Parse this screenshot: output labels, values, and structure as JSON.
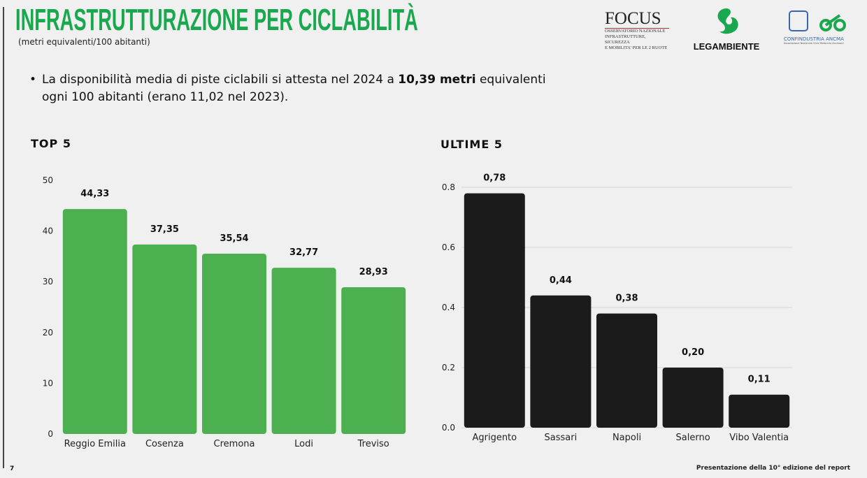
{
  "header": {
    "title": "INFRASTRUTTURAZIONE PER CICLABILITÀ",
    "subtitle": "(metri equivalenti/100 abitanti)"
  },
  "logos": {
    "focus": "FOCUS",
    "focus_sub": [
      "OSSERVATORIO NAZIONALE",
      "INFRASTRUTTURE, SICUREZZA",
      "E MOBILITA' PER LE 2 RUOTE"
    ],
    "legambiente": "LEGAMBIENTE",
    "confindustria": "CONFINDUSTRIA ANCMA",
    "confindustria_sub": "Associazione Nazionale Ciclo Motociclo Accessori"
  },
  "bullet": {
    "pre": "La disponibilità media di piste ciclabili si attesta nel 2024 a ",
    "bold": "10,39 metri",
    "post": " equivalenti ogni 100 abitanti (erano 11,02 nel 2023)."
  },
  "colors": {
    "title": "#1aa84f",
    "top_bars": "#4caf50",
    "bottom_bars": "#1b1b1b"
  },
  "chart_data": [
    {
      "type": "bar",
      "title": "TOP 5",
      "categories": [
        "Reggio Emilia",
        "Cosenza",
        "Cremona",
        "Lodi",
        "Treviso"
      ],
      "values": [
        44.33,
        37.35,
        35.54,
        32.77,
        28.93
      ],
      "data_labels": [
        "44,33",
        "37,35",
        "35,54",
        "32,77",
        "28,93"
      ],
      "ylim": [
        0,
        50
      ],
      "yticks": [
        "0",
        "10",
        "20",
        "30",
        "40",
        "50"
      ],
      "grid": false
    },
    {
      "type": "bar",
      "title": "ULTIME 5",
      "categories": [
        "Agrigento",
        "Sassari",
        "Napoli",
        "Salerno",
        "Vibo Valentia"
      ],
      "values": [
        0.78,
        0.44,
        0.38,
        0.2,
        0.11
      ],
      "data_labels": [
        "0,78",
        "0,44",
        "0,38",
        "0,20",
        "0,11"
      ],
      "ylim": [
        0,
        0.8
      ],
      "yticks": [
        "0.0",
        "0.2",
        "0.4",
        "0.6",
        "0.8"
      ],
      "grid": true
    }
  ],
  "footer": {
    "page": "7",
    "text": "Presentazione della 10° edizione del report"
  }
}
